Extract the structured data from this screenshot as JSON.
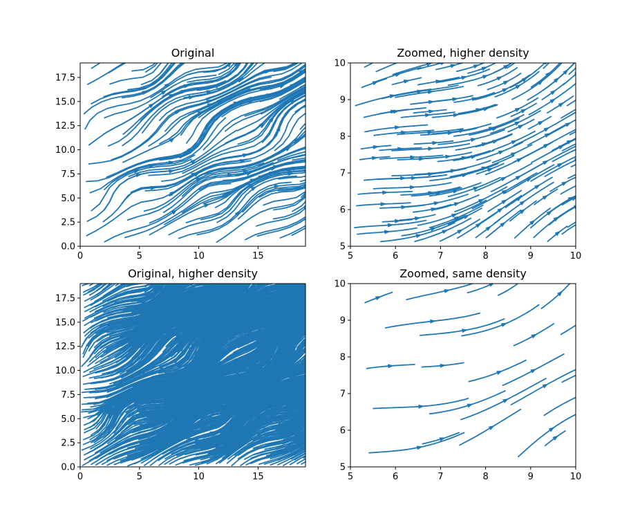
{
  "chart_data": [
    {
      "type": "streamplot",
      "title": "Original",
      "xlim": [
        0,
        19
      ],
      "ylim": [
        0,
        19
      ],
      "x_ticks": [
        0,
        5,
        10,
        15
      ],
      "x_tick_labels": [
        "0",
        "5",
        "10",
        "15"
      ],
      "y_ticks": [
        0,
        2.5,
        5,
        7.5,
        10,
        12.5,
        15,
        17.5
      ],
      "y_tick_labels": [
        "0.0",
        "2.5",
        "5.0",
        "7.5",
        "10.0",
        "12.5",
        "15.0",
        "17.5"
      ],
      "density": 1,
      "color": "#1f77b4"
    },
    {
      "type": "streamplot",
      "title": "Zoomed, higher density",
      "xlim": [
        5,
        10
      ],
      "ylim": [
        5,
        10
      ],
      "x_ticks": [
        5,
        6,
        7,
        8,
        9,
        10
      ],
      "x_tick_labels": [
        "5",
        "6",
        "7",
        "8",
        "9",
        "10"
      ],
      "y_ticks": [
        5,
        6,
        7,
        8,
        9,
        10
      ],
      "y_tick_labels": [
        "5",
        "6",
        "7",
        "8",
        "9",
        "10"
      ],
      "density": 1,
      "color": "#1f77b4"
    },
    {
      "type": "streamplot",
      "title": "Original, higher density",
      "xlim": [
        0,
        19
      ],
      "ylim": [
        0,
        19
      ],
      "x_ticks": [
        0,
        5,
        10,
        15
      ],
      "x_tick_labels": [
        "0",
        "5",
        "10",
        "15"
      ],
      "y_ticks": [
        0,
        2.5,
        5,
        7.5,
        10,
        12.5,
        15,
        17.5
      ],
      "y_tick_labels": [
        "0.0",
        "2.5",
        "5.0",
        "7.5",
        "10.0",
        "12.5",
        "15.0",
        "17.5"
      ],
      "density": 3,
      "color": "#1f77b4"
    },
    {
      "type": "streamplot",
      "title": "Zoomed, same density",
      "xlim": [
        5,
        10
      ],
      "ylim": [
        5,
        10
      ],
      "x_ticks": [
        5,
        6,
        7,
        8,
        9,
        10
      ],
      "x_tick_labels": [
        "5",
        "6",
        "7",
        "8",
        "9",
        "10"
      ],
      "y_ticks": [
        5,
        6,
        7,
        8,
        9,
        10
      ],
      "y_tick_labels": [
        "5",
        "6",
        "7",
        "8",
        "9",
        "10"
      ],
      "density": 0.45,
      "color": "#1f77b4"
    }
  ]
}
